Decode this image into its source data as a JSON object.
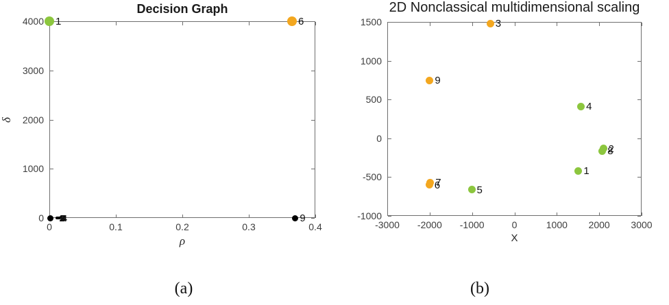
{
  "figure": {
    "captions": {
      "a": "(a)",
      "b": "(b)"
    },
    "background": "#ffffff",
    "axis_color": "#6e6e6e",
    "tick_label_color": "#3d3d3d",
    "cluster_colors": {
      "cluster1_green": "#8cc63e",
      "cluster2_orange": "#f3a71f",
      "unassigned_black": "#000000"
    }
  },
  "chart_data": [
    {
      "type": "scatter",
      "title": "Decision Graph",
      "xlabel": "ρ",
      "ylabel": "δ",
      "xlim": [
        0,
        0.4
      ],
      "ylim": [
        0,
        4000
      ],
      "xtick_values": [
        0,
        0.1,
        0.2,
        0.3,
        0.4
      ],
      "xtick_labels": [
        "0",
        "0.1",
        "0.2",
        "0.3",
        "0.4"
      ],
      "ytick_values": [
        0,
        1000,
        2000,
        3000,
        4000
      ],
      "ytick_labels": [
        "0",
        "1000",
        "2000",
        "3000",
        "4000"
      ],
      "grid": false,
      "legend": null,
      "points": [
        {
          "label": "1",
          "x": 0,
          "y": 4000,
          "color": "#8cc63e",
          "size": 14
        },
        {
          "label": "6",
          "x": 0.365,
          "y": 4000,
          "color": "#f3a71f",
          "size": 14
        },
        {
          "label": "9",
          "x": 0.37,
          "y": 0,
          "color": "#000000",
          "size": 9
        },
        {
          "label": "",
          "x": 0.002,
          "y": 0,
          "color": "#000000",
          "size": 9
        },
        {
          "label": "2",
          "x": 0.011,
          "y": 0,
          "color": "#000000",
          "size": 4,
          "bold": true
        },
        {
          "label": "3",
          "x": 0.013,
          "y": 0,
          "color": "#000000",
          "size": 4,
          "bold": true
        },
        {
          "label": "4",
          "x": 0.015,
          "y": 0,
          "color": "#000000",
          "size": 4,
          "bold": true
        },
        {
          "label": "5",
          "x": 0.012,
          "y": 0,
          "color": "#000000",
          "size": 4,
          "bold": true
        },
        {
          "label": "7",
          "x": 0.014,
          "y": 0,
          "color": "#000000",
          "size": 4,
          "bold": true
        },
        {
          "label": "8",
          "x": 0.013,
          "y": 0,
          "color": "#000000",
          "size": 4,
          "bold": true
        }
      ]
    },
    {
      "type": "scatter",
      "title": "2D Nonclassical multidimensional scaling",
      "xlabel": "X",
      "ylabel": "",
      "xlim": [
        -3000,
        3000
      ],
      "ylim": [
        -1000,
        1500
      ],
      "xtick_values": [
        -3000,
        -2000,
        -1000,
        0,
        1000,
        2000,
        3000
      ],
      "xtick_labels": [
        "-3000",
        "-2000",
        "-1000",
        "0",
        "1000",
        "2000",
        "3000"
      ],
      "ytick_values": [
        -1000,
        -500,
        0,
        500,
        1000,
        1500
      ],
      "ytick_labels": [
        "-1000",
        "-500",
        "0",
        "500",
        "1000",
        "1500"
      ],
      "grid": false,
      "legend": null,
      "points": [
        {
          "label": "3",
          "x": -570,
          "y": 1480,
          "color": "#f3a71f",
          "size": 11
        },
        {
          "label": "9",
          "x": -2000,
          "y": 745,
          "color": "#f3a71f",
          "size": 11
        },
        {
          "label": "4",
          "x": 1570,
          "y": 410,
          "color": "#8cc63e",
          "size": 11
        },
        {
          "label": "2",
          "x": 2095,
          "y": -130,
          "color": "#8cc63e",
          "size": 11
        },
        {
          "label": "8",
          "x": 2075,
          "y": -165,
          "color": "#8cc63e",
          "size": 11
        },
        {
          "label": "1",
          "x": 1510,
          "y": -420,
          "color": "#8cc63e",
          "size": 11
        },
        {
          "label": "7",
          "x": -1985,
          "y": -570,
          "color": "#f3a71f",
          "size": 11
        },
        {
          "label": "6",
          "x": -2010,
          "y": -600,
          "color": "#f3a71f",
          "size": 11
        },
        {
          "label": "5",
          "x": -1010,
          "y": -660,
          "color": "#8cc63e",
          "size": 11
        }
      ]
    }
  ]
}
